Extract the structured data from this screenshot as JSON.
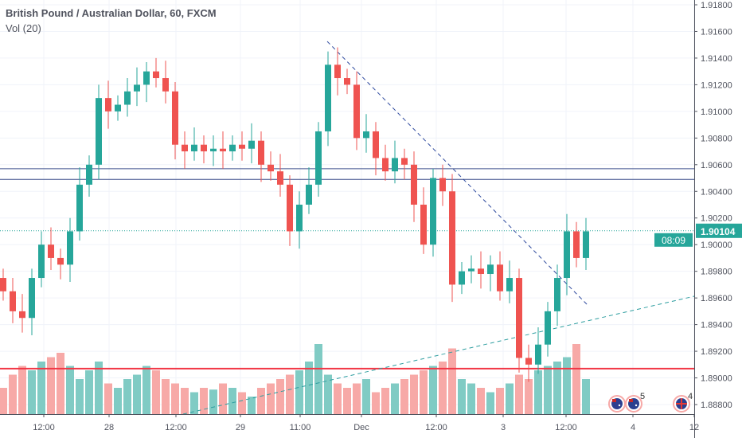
{
  "legend": {
    "title": "British Pound / Australian Dollar, 60, FXCM",
    "volume": "Vol (20)"
  },
  "colors": {
    "up": "#26a69a",
    "down": "#ef5350",
    "up_vol": "#80cbc4",
    "down_vol": "#f7a9a7",
    "hline": "#3d4f8c",
    "support": "#f23645",
    "trend_down": "#2e4a9e",
    "trend_up": "#2e9ea0",
    "price_label": "#26a69a"
  },
  "chart_data": {
    "type": "candlestick",
    "title": "British Pound / Australian Dollar, 60, FXCM",
    "ylim": [
      1.888,
      1.918
    ],
    "yticks": [
      "1.91800",
      "1.91600",
      "1.91400",
      "1.91200",
      "1.91000",
      "1.90800",
      "1.90600",
      "1.90400",
      "1.90200",
      "1.90000",
      "1.89800",
      "1.89600",
      "1.89400",
      "1.89200",
      "1.89000",
      "1.88800"
    ],
    "xticks": [
      "12:00",
      "28",
      "12:00",
      "29",
      "11:00",
      "Dec",
      "12:00",
      "3",
      "12:00",
      "4",
      "12"
    ],
    "first_open": 1.8975,
    "closes": [
      1.8965,
      1.895,
      1.8945,
      1.8975,
      1.9,
      1.899,
      1.8985,
      1.901,
      1.9045,
      1.906,
      1.911,
      1.91,
      1.9105,
      1.9115,
      1.912,
      1.913,
      1.9125,
      1.9115,
      1.9075,
      1.907,
      1.9075,
      1.907,
      1.9072,
      1.907,
      1.9075,
      1.9072,
      1.9078,
      1.906,
      1.9055,
      1.9045,
      1.901,
      1.903,
      1.9045,
      1.9085,
      1.9135,
      1.9125,
      1.912,
      1.908,
      1.9085,
      1.9065,
      1.9055,
      1.9065,
      1.906,
      1.903,
      1.9,
      1.905,
      1.904,
      1.897,
      1.898,
      1.8982,
      1.8978,
      1.8985,
      1.8965,
      1.8975,
      1.8915,
      1.891,
      1.8925,
      1.895,
      1.8975,
      1.901,
      1.899,
      1.901
    ],
    "volumes": [
      30,
      45,
      55,
      50,
      60,
      65,
      70,
      55,
      40,
      50,
      60,
      35,
      30,
      40,
      45,
      55,
      50,
      40,
      35,
      30,
      25,
      30,
      28,
      35,
      30,
      25,
      20,
      30,
      35,
      40,
      45,
      50,
      60,
      80,
      45,
      35,
      30,
      35,
      40,
      25,
      30,
      35,
      40,
      45,
      50,
      55,
      60,
      75,
      40,
      35,
      30,
      25,
      30,
      35,
      45,
      40,
      50,
      55,
      60,
      65,
      80,
      40
    ],
    "horizontal_levels": [
      1.9057,
      1.9049,
      1.8907
    ],
    "current_price": "1.90104",
    "countdown": "08:09",
    "event_markers": [
      {
        "label": "5"
      },
      {
        "label": "4"
      }
    ]
  }
}
